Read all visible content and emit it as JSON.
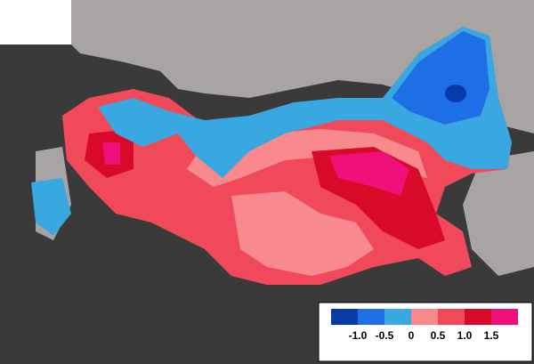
{
  "legend": {
    "colors": [
      "#0a3aa8",
      "#1e6ee6",
      "#3aa8e0",
      "#f88a8e",
      "#f04a5a",
      "#d80a2a",
      "#f0107a"
    ],
    "labels": [
      "-1.0",
      "-0.5",
      "0",
      "0.5",
      "1.0",
      "1.5"
    ]
  }
}
